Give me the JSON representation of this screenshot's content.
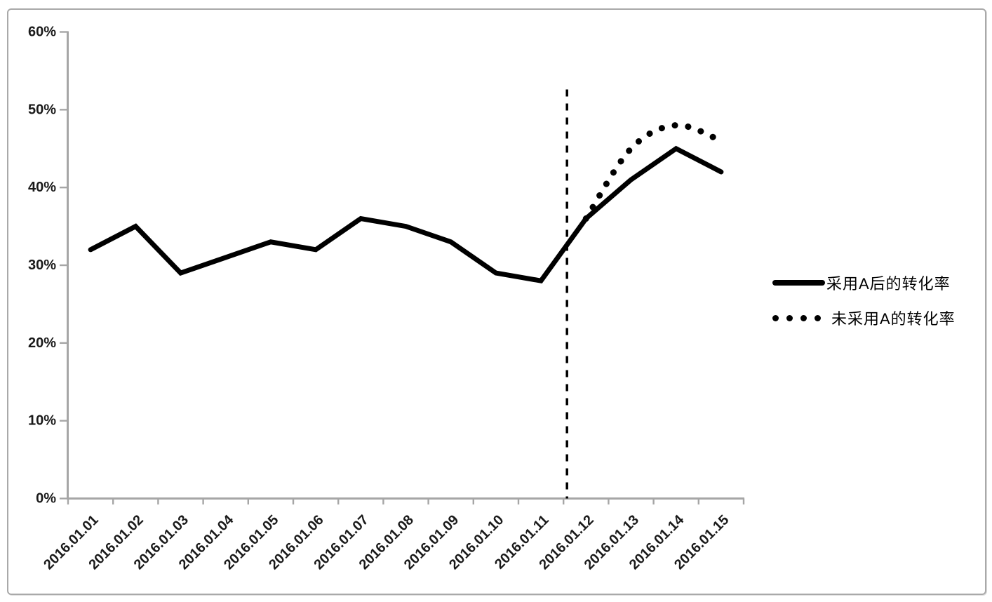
{
  "legend": {
    "position": "right",
    "items": [
      {
        "label": "采用A后的转化率",
        "marker": "solid-line"
      },
      {
        "label": "未采用A的转化率",
        "marker": "dotted-line"
      }
    ]
  },
  "chart_data": {
    "type": "line",
    "categories": [
      "2016.01.01",
      "2016.01.02",
      "2016.01.03",
      "2016.01.04",
      "2016.01.05",
      "2016.01.06",
      "2016.01.07",
      "2016.01.08",
      "2016.01.09",
      "2016.01.10",
      "2016.01.11",
      "2016.01.12",
      "2016.01.13",
      "2016.01.14",
      "2016.01.15"
    ],
    "series": [
      {
        "name": "采用A后的转化率",
        "line_style": "solid",
        "smoothed": false,
        "color": "#000000",
        "values": [
          32,
          35,
          29,
          31,
          33,
          32,
          36,
          35,
          33,
          29,
          28,
          36,
          41,
          45,
          42
        ]
      },
      {
        "name": "未采用A的转化率",
        "line_style": "dotted",
        "smoothed": true,
        "color": "#000000",
        "values": [
          null,
          null,
          null,
          null,
          null,
          null,
          null,
          null,
          null,
          null,
          null,
          36,
          45,
          48,
          46
        ]
      }
    ],
    "y_axis": {
      "unit": "%",
      "min": 0,
      "max": 60,
      "tick_step": 10,
      "tick_labels": [
        "0%",
        "10%",
        "20%",
        "30%",
        "40%",
        "50%",
        "60%"
      ]
    },
    "x_axis": {
      "label_rotation_deg": -45,
      "grid": false
    },
    "annotations": [
      {
        "type": "vertical-dashed-line",
        "x_category": "2016.01.12",
        "at": "category-start",
        "y_top_value": 52.6,
        "color": "#000000"
      }
    ],
    "axis_color": "#a6a6a6",
    "text_color": "#1a1a1a",
    "title": "",
    "legend_position": "right"
  }
}
